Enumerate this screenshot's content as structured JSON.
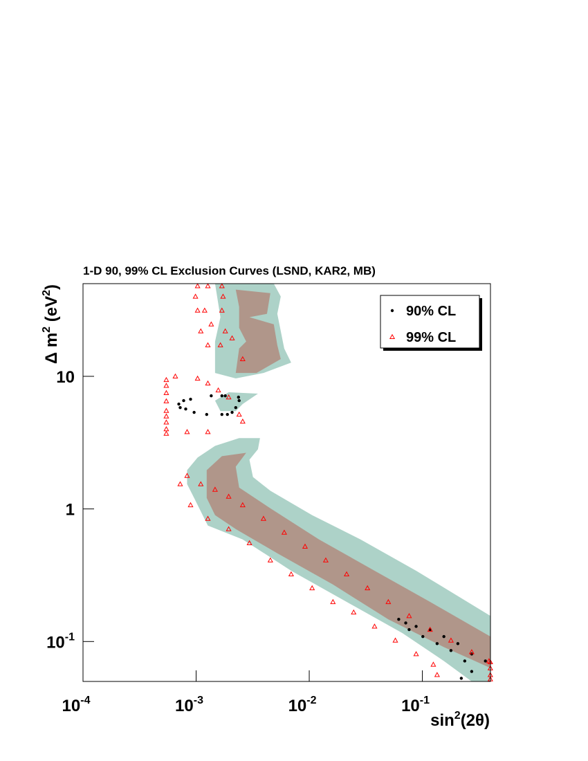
{
  "chart_data": {
    "type": "scatter",
    "title": "1-D 90, 99% CL Exclusion Curves (LSND, KAR2, MB)",
    "x_label": [
      "sin",
      "2",
      "(2θ)"
    ],
    "y_label": [
      "Δ m",
      "2",
      " (eV",
      "2",
      ")"
    ],
    "log_x": true,
    "log_y": true,
    "xlim": [
      0.0001,
      0.4
    ],
    "ylim": [
      0.05,
      50
    ],
    "xticks": [
      {
        "value": 0.0001,
        "label": "10",
        "exponent": "-4"
      },
      {
        "value": 0.001,
        "label": "10",
        "exponent": "-3"
      },
      {
        "value": 0.01,
        "label": "10",
        "exponent": "-2"
      },
      {
        "value": 0.1,
        "label": "10",
        "exponent": "-1"
      }
    ],
    "yticks": [
      {
        "value": 0.1,
        "label": "10",
        "exponent": "-1"
      },
      1,
      10
    ],
    "legend": "top-right",
    "areas": [
      {
        "color": "#add2c8",
        "x": [
          0.000832,
          0.00103,
          0.00147,
          0.0024,
          0.00367,
          0.00352,
          0.00296,
          0.00318,
          0.00453,
          0.0106,
          0.0284,
          0.0881,
          0.4,
          0.4,
          0.273,
          0.155,
          0.0664,
          0.0214,
          0.00692,
          0.00258,
          0.00127,
          0.00096,
          0.000832
        ],
        "values": [
          1.96,
          2.44,
          2.99,
          3.42,
          3.42,
          2.82,
          2.35,
          1.74,
          1.37,
          0.898,
          0.589,
          0.342,
          0.156,
          0.05,
          0.05,
          0.0713,
          0.116,
          0.199,
          0.342,
          0.589,
          0.749,
          1.21,
          1.54
        ]
      },
      {
        "color": "#add2c8",
        "x": [
          0.00147,
          0.00486,
          0.0056,
          0.00522,
          0.00601,
          0.00692,
          0.00394,
          0.00224,
          0.00147,
          0.00147,
          0.00164
        ],
        "values": [
          50,
          50,
          40,
          29.6,
          16.2,
          12.7,
          10.6,
          9.64,
          10.6,
          18.3,
          27.9
        ]
      },
      {
        "color": "#add2c8",
        "x": [
          0.00147,
          0.00194,
          0.00352,
          0.00258,
          0.00224,
          0.00164
        ],
        "values": [
          6.56,
          7.58,
          7.4,
          6.18,
          5.47,
          5.47
        ]
      },
      {
        "color": "#b0968a",
        "x": [
          0.00124,
          0.00169,
          0.00277,
          0.00224,
          0.0024,
          0.00453,
          0.0122,
          0.0378,
          0.117,
          0.4,
          0.4,
          0.155,
          0.05,
          0.0162,
          0.00522,
          0.00224,
          0.00147,
          0.00124
        ],
        "values": [
          1.96,
          2.5,
          2.65,
          2.08,
          1.45,
          1.01,
          0.589,
          0.342,
          0.199,
          0.109,
          0.0632,
          0.0908,
          0.147,
          0.269,
          0.463,
          0.705,
          0.898,
          1.21
        ]
      },
      {
        "color": "#b0968a",
        "x": [
          0.00224,
          0.00453,
          0.00423,
          0.00296,
          0.00486,
          0.00522,
          0.0056,
          0.00342,
          0.00224,
          0.0024,
          0.00277,
          0.0024,
          0.0024
        ],
        "values": [
          45.1,
          42.4,
          29.6,
          27.9,
          24.7,
          17.2,
          13.5,
          10.6,
          10.6,
          16.2,
          18.3,
          23.2,
          33.4
        ]
      }
    ],
    "series": [
      {
        "name": "90% CL",
        "color": "#000000",
        "marker": "dot",
        "x": [
          0.000703,
          0.000776,
          0.000893,
          0.000723,
          0.000809,
          0.00096,
          0.00124,
          0.00136,
          0.00169,
          0.00181,
          0.00169,
          0.00189,
          0.00208,
          0.00224,
          0.0024,
          0.00237,
          0.0618,
          0.0713,
          0.0881,
          0.117,
          0.155,
          0.206,
          0.273,
          0.361,
          0.0764,
          0.101,
          0.135,
          0.179,
          0.237,
          0.273,
          0.221
        ],
        "values": [
          6.18,
          6.56,
          6.72,
          5.81,
          5.67,
          5.35,
          5.16,
          7.13,
          7.13,
          7.13,
          5.16,
          5.16,
          5.35,
          5.81,
          6.56,
          6.96,
          0.147,
          0.138,
          0.13,
          0.123,
          0.109,
          0.0964,
          0.0805,
          0.0713,
          0.123,
          0.109,
          0.0964,
          0.0855,
          0.0713,
          0.0595,
          0.0528
        ]
      },
      {
        "name": "99% CL",
        "color": "#ff0000",
        "marker": "triangle",
        "x": [
          0.000545,
          0.000545,
          0.000545,
          0.000545,
          0.000545,
          0.000545,
          0.000545,
          0.000545,
          0.000545,
          0.00103,
          0.00127,
          0.00169,
          0.000987,
          0.00173,
          0.00103,
          0.00119,
          0.00169,
          0.00136,
          0.0011,
          0.00181,
          0.00127,
          0.00164,
          0.00258,
          0.00208,
          0.000655,
          0.00103,
          0.00127,
          0.00157,
          0.00194,
          0.0024,
          0.00127,
          0.000832,
          0.00258,
          0.000832,
          0.0011,
          0.00147,
          0.00194,
          0.00258,
          0.00394,
          0.00601,
          0.00918,
          0.014,
          0.0214,
          0.0327,
          0.05,
          0.0764,
          0.117,
          0.179,
          0.273,
          0.388,
          0.000723,
          0.000893,
          0.00127,
          0.00194,
          0.00296,
          0.00453,
          0.00692,
          0.0106,
          0.0162,
          0.0247,
          0.0378,
          0.0577,
          0.0881,
          0.125,
          0.135,
          0.399,
          0.399,
          0.399,
          0.399
        ],
        "values": [
          9.4,
          8.5,
          7.5,
          6.5,
          5.5,
          5,
          4.5,
          4,
          3.7,
          48,
          48,
          48,
          40,
          40,
          31.4,
          31.4,
          31.4,
          24.7,
          21.9,
          21.9,
          17.2,
          17.2,
          13.5,
          19.4,
          10,
          9.64,
          8.86,
          7.85,
          6.96,
          5.16,
          3.81,
          3.81,
          4.57,
          1.78,
          1.54,
          1.4,
          1.24,
          1.07,
          0.845,
          0.664,
          0.521,
          0.41,
          0.322,
          0.253,
          0.199,
          0.156,
          0.123,
          0.102,
          0.0834,
          0.0713,
          1.54,
          1.07,
          0.845,
          0.705,
          0.553,
          0.41,
          0.322,
          0.253,
          0.199,
          0.166,
          0.13,
          0.102,
          0.0805,
          0.0671,
          0.0561,
          0.07,
          0.063,
          0.056,
          0.052
        ]
      }
    ]
  }
}
